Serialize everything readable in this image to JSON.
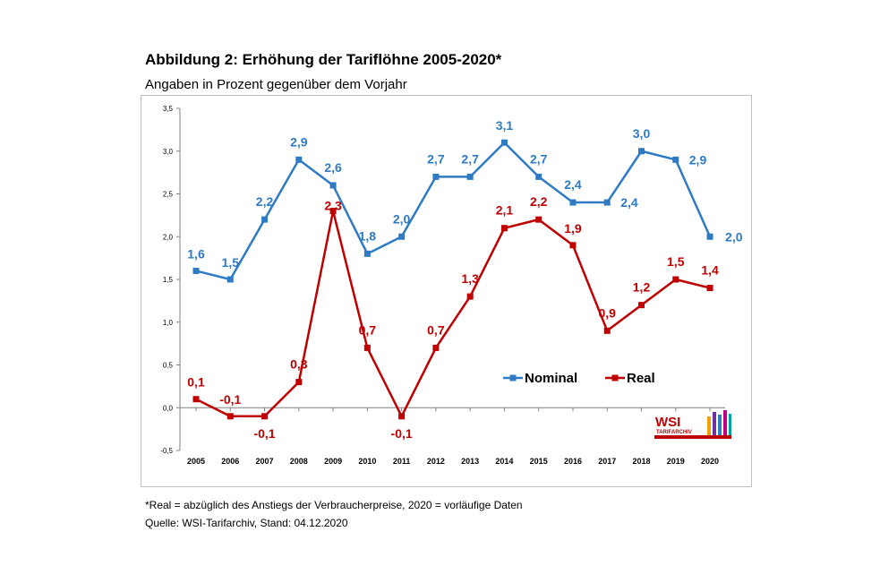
{
  "chart_data": {
    "type": "line",
    "title": "Abbildung 2: Erhöhung der Tariflöhne 2005-2020*",
    "subtitle": "Angaben in Prozent gegenüber dem Vorjahr",
    "categories": [
      "2005",
      "2006",
      "2007",
      "2008",
      "2009",
      "2010",
      "2011",
      "2012",
      "2013",
      "2014",
      "2015",
      "2016",
      "2017",
      "2018",
      "2019",
      "2020"
    ],
    "series": [
      {
        "name": "Nominal",
        "color": "#2e7bc4",
        "values": [
          1.6,
          1.5,
          2.2,
          2.9,
          2.6,
          1.8,
          2.0,
          2.7,
          2.7,
          3.1,
          2.7,
          2.4,
          2.4,
          3.0,
          2.9,
          2.0
        ],
        "labels": [
          "1,6",
          "1,5",
          "2,2",
          "2,9",
          "2,6",
          "1,8",
          "2,0",
          "2,7",
          "2,7",
          "3,1",
          "2,7",
          "2,4",
          "2,4",
          "3,0",
          "2,9",
          "2,0"
        ]
      },
      {
        "name": "Real",
        "color": "#c00000",
        "values": [
          0.1,
          -0.1,
          -0.1,
          0.3,
          2.3,
          0.7,
          -0.1,
          0.7,
          1.3,
          2.1,
          2.2,
          1.9,
          0.9,
          1.2,
          1.5,
          1.4
        ],
        "labels": [
          "0,1",
          "-0,1",
          "-0,1",
          "0,3",
          "2,3",
          "0,7",
          "-0,1",
          "0,7",
          "1,3",
          "2,1",
          "2,2",
          "1,9",
          "0,9",
          "1,2",
          "1,5",
          "1,4"
        ]
      }
    ],
    "ylim": [
      -0.5,
      3.5
    ],
    "yticks": [
      -0.5,
      0.0,
      0.5,
      1.0,
      1.5,
      2.0,
      2.5,
      3.0,
      3.5
    ],
    "ytick_labels": [
      "-0,5",
      "0,0",
      "0,5",
      "1,0",
      "1,5",
      "2,0",
      "2,5",
      "3,0",
      "3,5"
    ],
    "grid": false,
    "legend_position": "lower-right"
  },
  "footnote": "*Real = abzüglich des Anstiegs der Verbraucherpreise, 2020 = vorläufige Daten",
  "source": "Quelle: WSI-Tarifarchiv, Stand: 04.12.2020",
  "logo": {
    "line1": "WSI",
    "line2": "TARIFARCHIV"
  }
}
